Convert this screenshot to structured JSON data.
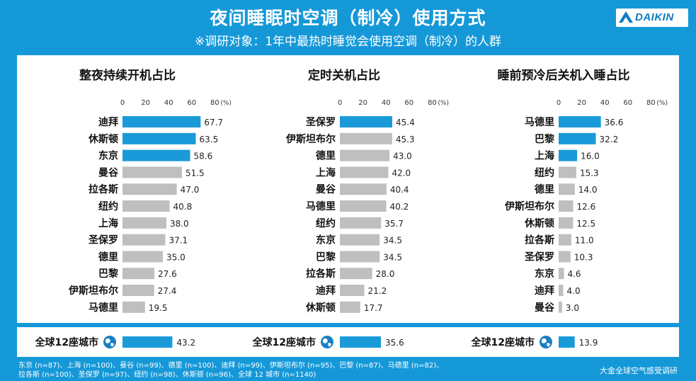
{
  "header": {
    "title": "夜间睡眠时空调（制冷）使用方式",
    "subtitle": "※调研对象：1年中最热时睡觉会使用空调（制冷）的人群",
    "logo_text": "DAIKIN"
  },
  "colors": {
    "background": "#1598d8",
    "bar_highlight": "#1a9ad9",
    "bar_normal": "#bfbfbf"
  },
  "chart_data": [
    {
      "type": "bar",
      "orientation": "horizontal",
      "title": "整夜持续开机占比",
      "xlim": [
        0,
        80
      ],
      "ticks": [
        0,
        20,
        40,
        60,
        80
      ],
      "unit_label": "(%)",
      "categories": [
        "迪拜",
        "休斯顿",
        "东京",
        "曼谷",
        "拉各斯",
        "纽约",
        "上海",
        "圣保罗",
        "德里",
        "巴黎",
        "伊斯坦布尔",
        "马德里"
      ],
      "values": [
        67.7,
        63.5,
        58.6,
        51.5,
        47.0,
        40.8,
        38.0,
        37.1,
        35.0,
        27.6,
        27.4,
        19.5
      ],
      "labels": [
        "67.7",
        "63.5",
        "58.6",
        "51.5",
        "47.0",
        "40.8",
        "38.0",
        "37.1",
        "35.0",
        "27.6",
        "27.4",
        "19.5"
      ],
      "highlight_top": 3,
      "total": {
        "category": "全球12座城市",
        "value": 43.2,
        "label": "43.2"
      }
    },
    {
      "type": "bar",
      "orientation": "horizontal",
      "title": "定时关机占比",
      "xlim": [
        0,
        80
      ],
      "ticks": [
        0,
        20,
        40,
        60,
        80
      ],
      "unit_label": "(%)",
      "categories": [
        "圣保罗",
        "伊斯坦布尔",
        "德里",
        "上海",
        "曼谷",
        "马德里",
        "纽约",
        "东京",
        "巴黎",
        "拉各斯",
        "迪拜",
        "休斯顿"
      ],
      "values": [
        45.4,
        45.3,
        43.0,
        42.0,
        40.4,
        40.2,
        35.7,
        34.5,
        34.5,
        28.0,
        21.2,
        17.7
      ],
      "labels": [
        "45.4",
        "45.3",
        "43.0",
        "42.0",
        "40.4",
        "40.2",
        "35.7",
        "34.5",
        "34.5",
        "28.0",
        "21.2",
        "17.7"
      ],
      "highlight_top": 1,
      "total": {
        "category": "全球12座城市",
        "value": 35.6,
        "label": "35.6"
      }
    },
    {
      "type": "bar",
      "orientation": "horizontal",
      "title": "睡前预冷后关机入睡占比",
      "xlim": [
        0,
        80
      ],
      "ticks": [
        0,
        20,
        40,
        60,
        80
      ],
      "unit_label": "(%)",
      "categories": [
        "马德里",
        "巴黎",
        "上海",
        "纽约",
        "德里",
        "伊斯坦布尔",
        "休斯顿",
        "拉各斯",
        "圣保罗",
        "东京",
        "迪拜",
        "曼谷"
      ],
      "values": [
        36.6,
        32.2,
        16.0,
        15.3,
        14.0,
        12.6,
        12.5,
        11.0,
        10.3,
        4.6,
        4.0,
        3.0
      ],
      "labels": [
        "36.6",
        "32.2",
        "16.0",
        "15.3",
        "14.0",
        "12.6",
        "12.5",
        "11.0",
        "10.3",
        "4.6",
        "4.0",
        "3.0"
      ],
      "highlight_top": 3,
      "total": {
        "category": "全球12座城市",
        "value": 13.9,
        "label": "13.9"
      }
    }
  ],
  "footer": {
    "note_line1": "东京 (n=87)、上海 (n=100)、曼谷 (n=99)、德里 (n=100)、迪拜 (n=99)、伊斯坦布尔 (n=95)、巴黎 (n=87)、马德里 (n=82)、",
    "note_line2": "拉各斯 (n=100)、圣保罗 (n=97)、纽约 (n=98)、休斯顿 (n=96)、全球 12 城市 (n=1140)",
    "source": "大金全球空气感受调研"
  }
}
